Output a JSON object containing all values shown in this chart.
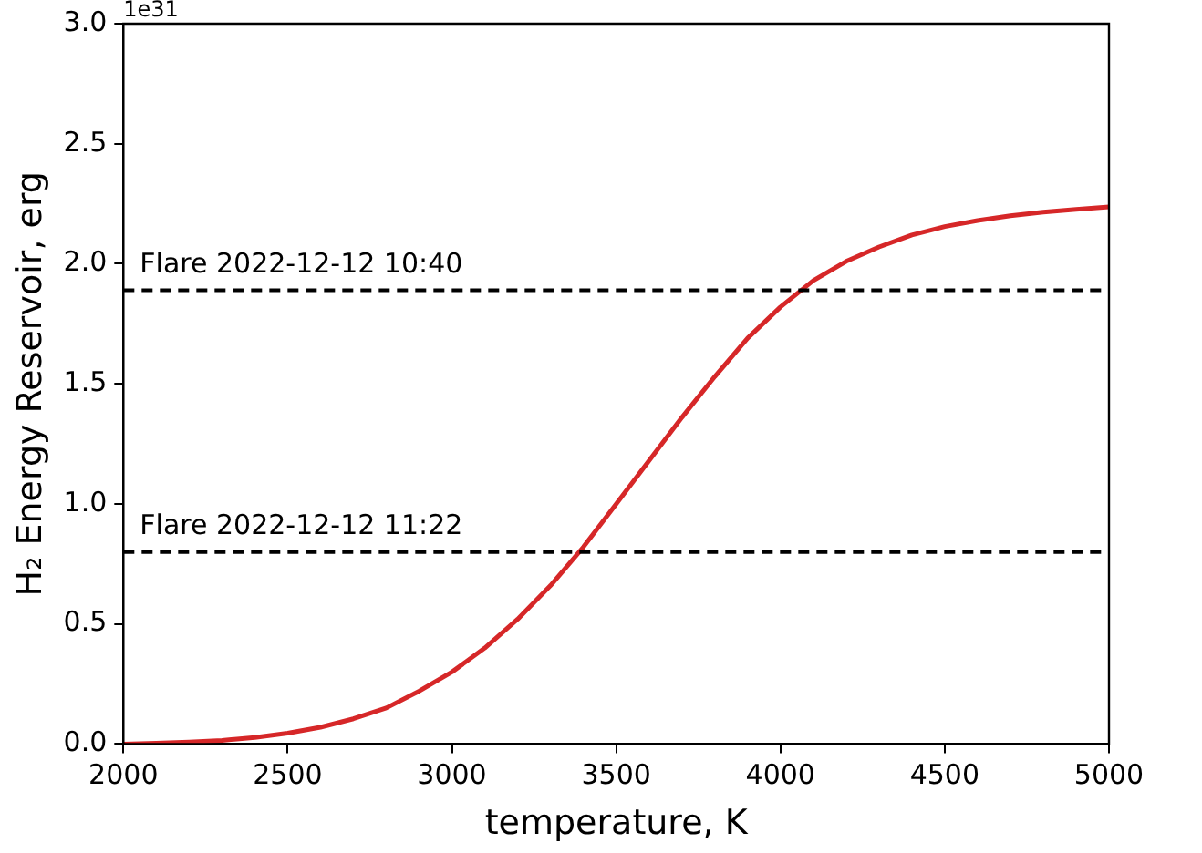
{
  "chart_data": {
    "type": "line",
    "xlabel": "temperature, K",
    "ylabel": "H₂ Energy Reservoir, erg",
    "annotations": [
      "1e31",
      {
        "text": "Flare 2022-12-12 10:40",
        "x": 2050,
        "y": 1.89
      },
      {
        "text": "Flare 2022-12-12 11:22",
        "x": 2050,
        "y": 0.8
      }
    ],
    "x": [
      2000,
      2100,
      2200,
      2300,
      2400,
      2500,
      2600,
      2700,
      2800,
      2900,
      3000,
      3100,
      3200,
      3300,
      3400,
      3500,
      3600,
      3700,
      3800,
      3900,
      4000,
      4100,
      4200,
      4300,
      4400,
      4500,
      4600,
      4700,
      4800,
      4900,
      5000
    ],
    "series": [
      {
        "color": "#d62728",
        "values": [
          0,
          0.003,
          0.008,
          0.015,
          0.027,
          0.045,
          0.07,
          0.105,
          0.15,
          0.22,
          0.3,
          0.4,
          0.52,
          0.66,
          0.82,
          1.0,
          1.18,
          1.36,
          1.53,
          1.69,
          1.82,
          1.93,
          2.01,
          2.07,
          2.12,
          2.155,
          2.18,
          2.2,
          2.215,
          2.227,
          2.237
        ]
      }
    ],
    "xlim": [
      2000,
      5000
    ],
    "xticks": [
      2000,
      2500,
      3000,
      3500,
      4000,
      4500,
      5000
    ],
    "ylim": [
      0,
      3
    ],
    "yticks": [
      {
        "value": 0,
        "label": "0.0"
      },
      {
        "value": 0.5,
        "label": "0.5"
      },
      {
        "value": 1,
        "label": "1.0"
      },
      {
        "value": 1.5,
        "label": "1.5"
      },
      {
        "value": 2,
        "label": "2.0"
      },
      {
        "value": 2.5,
        "label": "2.5"
      },
      {
        "value": 3,
        "label": "3.0"
      }
    ],
    "ref_lines": [
      {
        "axis": "y",
        "value": 1.89,
        "color": "#000000",
        "line_style": "dashed"
      },
      {
        "axis": "y",
        "value": 0.8,
        "color": "#000000",
        "line_style": "dashed"
      }
    ],
    "grid": false,
    "legend": false,
    "marker": "none",
    "line_style": "solid"
  }
}
